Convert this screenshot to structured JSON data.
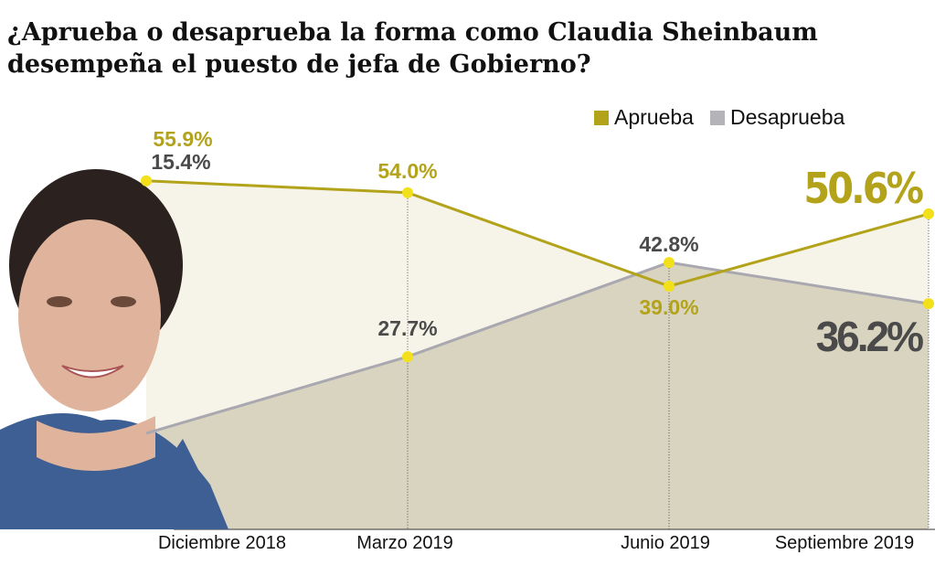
{
  "title": "¿Aprueba o desaprueba la forma como Claudia Sheinbaum desempeña el puesto de jefa de Gobierno?",
  "chart_data": {
    "type": "area",
    "title": "¿Aprueba o desaprueba la forma como Claudia Sheinbaum desempeña el puesto de jefa de Gobierno?",
    "categories": [
      "Diciembre 2018",
      "Marzo 2019",
      "Junio 2019",
      "Septiembre 2019"
    ],
    "series": [
      {
        "name": "Aprueba",
        "values": [
          55.9,
          54.0,
          39.0,
          50.6
        ],
        "labels": [
          "55.9%",
          "54.0%",
          "39.0%",
          "50.6%"
        ],
        "color": "#b3a31b"
      },
      {
        "name": "Desaprueba",
        "values": [
          15.4,
          27.7,
          42.8,
          36.2
        ],
        "labels": [
          "15.4%",
          "27.7%",
          "42.8%",
          "36.2%"
        ],
        "color": "#a9a8b0"
      }
    ],
    "ylim": [
      0,
      60
    ],
    "grid": false,
    "legend": "top-right",
    "colors": {
      "aprueba_fill": "#f6f4e8",
      "desaprueba_fill": "#d9d4c0",
      "marker": "#f2e11a",
      "label_dark": "#4a4a4a"
    }
  }
}
